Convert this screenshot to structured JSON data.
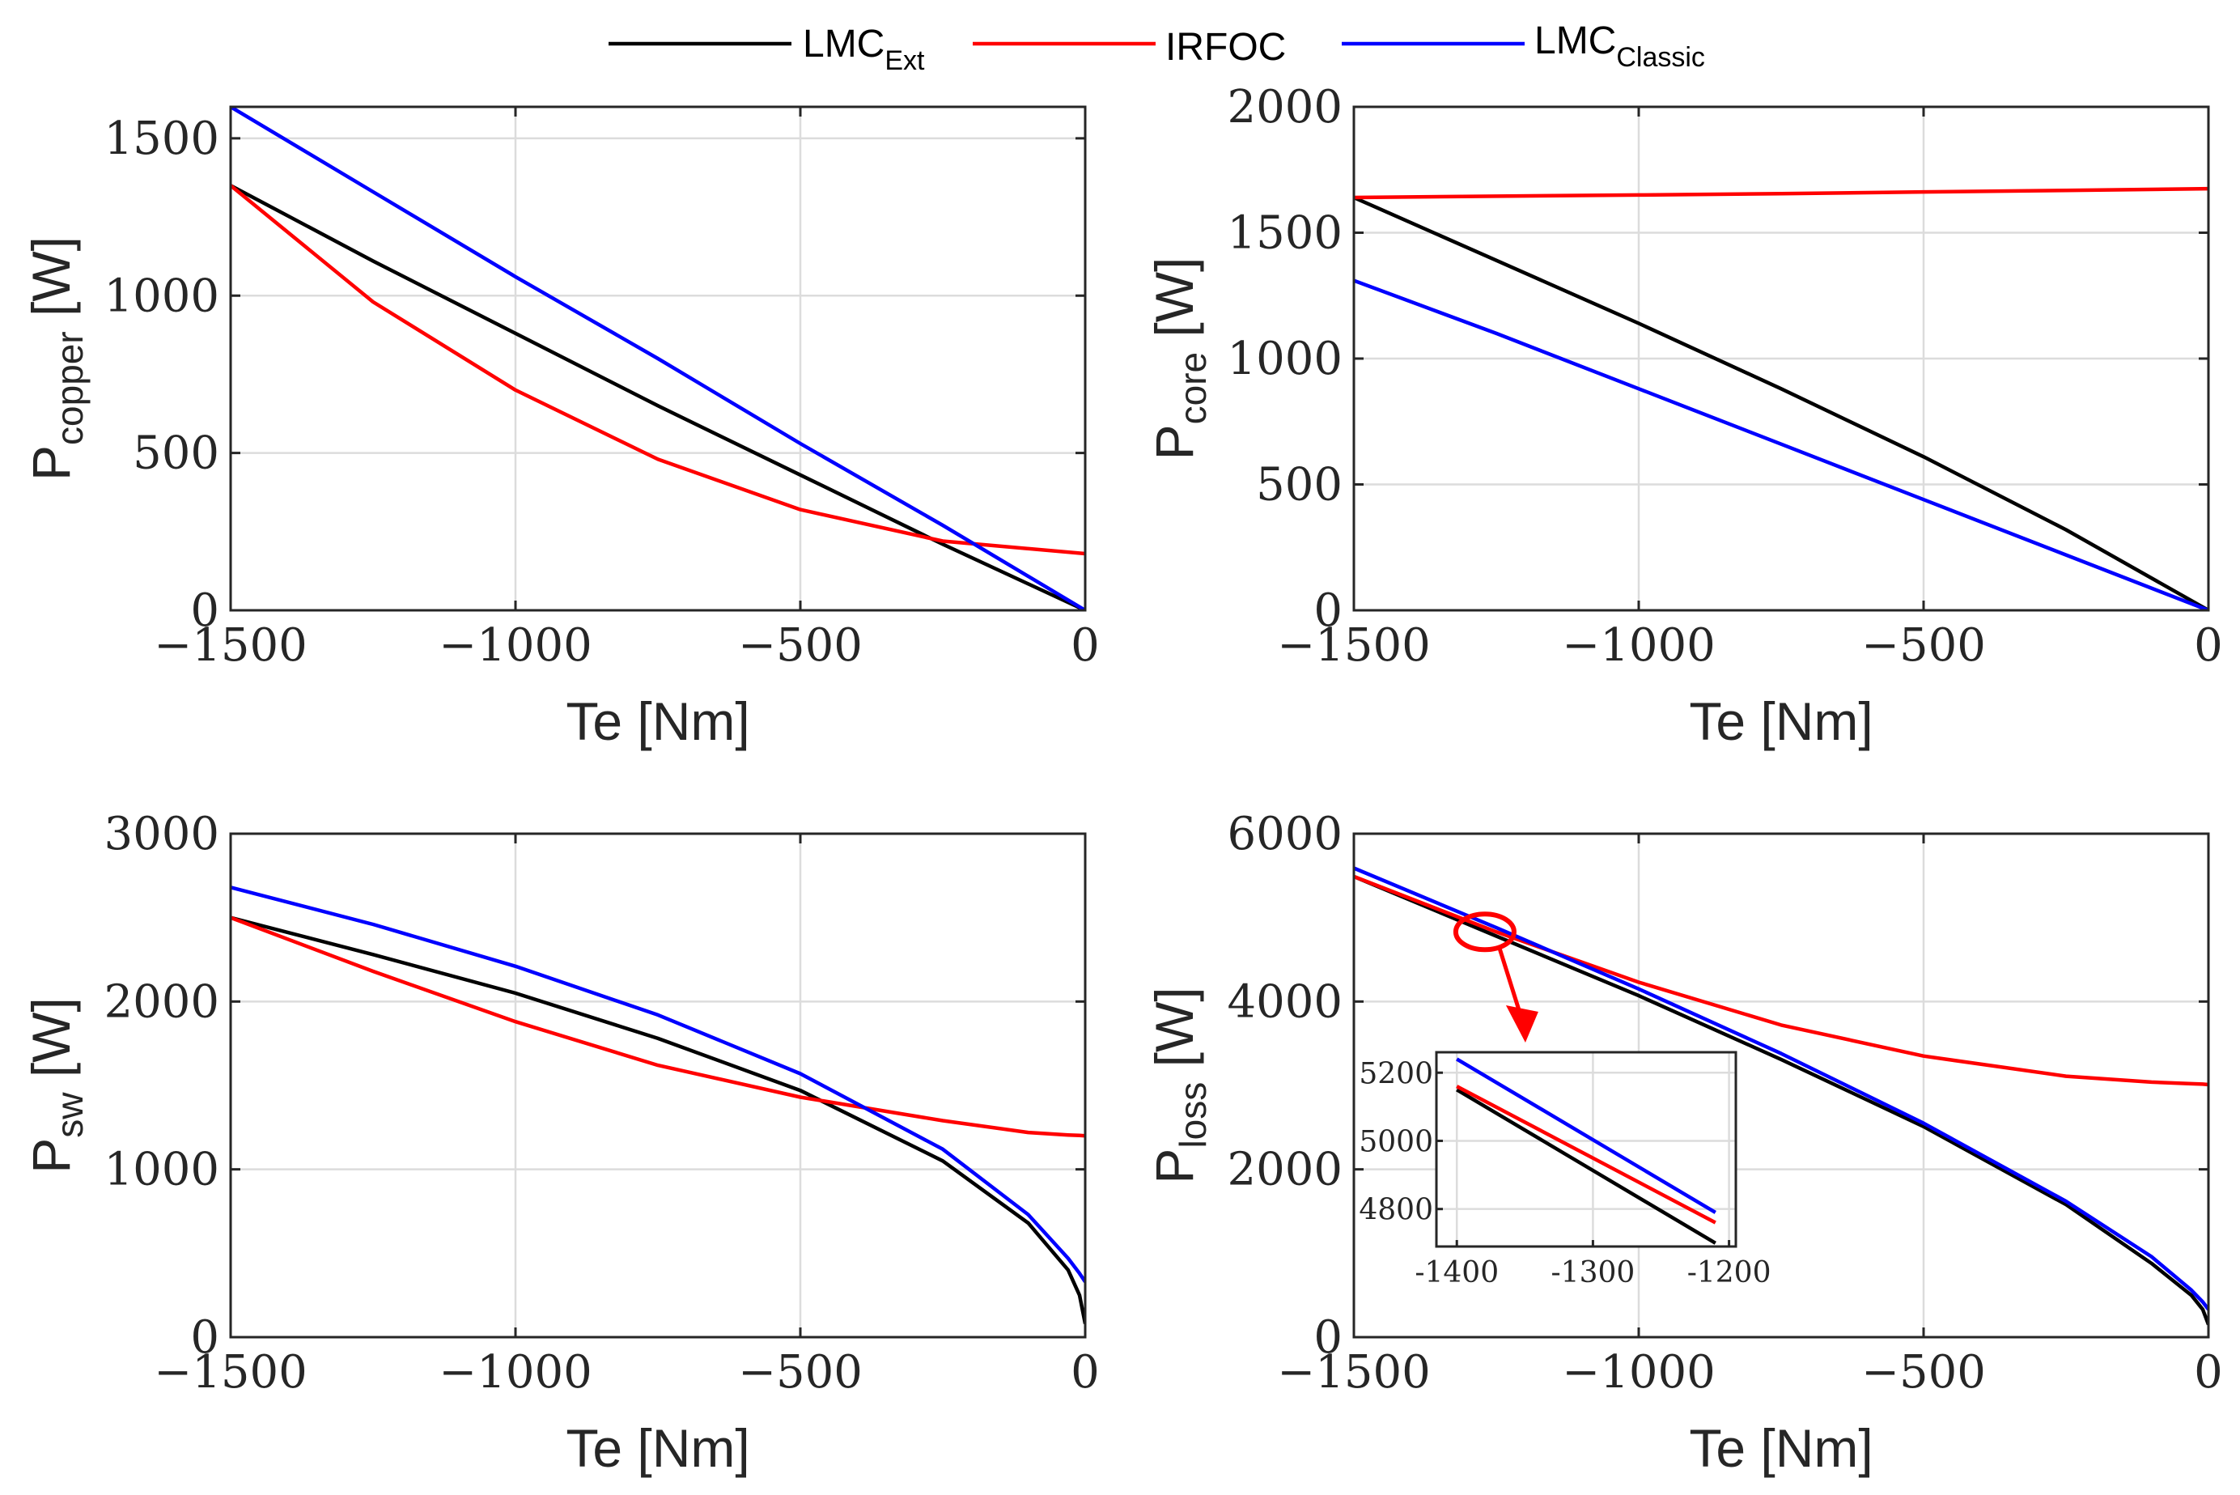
{
  "legend": {
    "entries": [
      {
        "name": "LMC",
        "sub": "Ext",
        "color": "#000000"
      },
      {
        "name": "IRFOC",
        "sub": "",
        "color": "#ff0000"
      },
      {
        "name": "LMC",
        "sub": "Classic",
        "color": "#0000ff"
      }
    ]
  },
  "chart_data": [
    {
      "type": "line",
      "id": "copper",
      "xlabel": "Te [Nm]",
      "ylabel_main": "P",
      "ylabel_sub": "copper",
      "ylabel_unit": " [W]",
      "xlim": [
        -1500,
        0
      ],
      "ylim": [
        0,
        1600
      ],
      "xticks": [
        -1500,
        -1000,
        -500,
        0
      ],
      "xtick_labels": [
        "−1500",
        "−1000",
        "−500",
        "0"
      ],
      "yticks": [
        0,
        500,
        1000,
        1500
      ],
      "ytick_labels": [
        "0",
        "500",
        "1000",
        "1500"
      ],
      "grid": true,
      "x": [
        -1500,
        -1250,
        -1000,
        -750,
        -500,
        -250,
        0
      ],
      "series": [
        {
          "name": "LMC_Ext",
          "color": "#000000",
          "values": [
            1350,
            1110,
            880,
            650,
            430,
            210,
            0
          ]
        },
        {
          "name": "IRFOC",
          "color": "#ff0000",
          "values": [
            1350,
            980,
            700,
            480,
            320,
            220,
            180
          ]
        },
        {
          "name": "LMC_Classic",
          "color": "#0000ff",
          "values": [
            1600,
            1330,
            1060,
            800,
            530,
            270,
            0
          ]
        }
      ]
    },
    {
      "type": "line",
      "id": "core",
      "xlabel": "Te [Nm]",
      "ylabel_main": "P",
      "ylabel_sub": "core",
      "ylabel_unit": " [W]",
      "xlim": [
        -1500,
        0
      ],
      "ylim": [
        0,
        2000
      ],
      "xticks": [
        -1500,
        -1000,
        -500,
        0
      ],
      "xtick_labels": [
        "−1500",
        "−1000",
        "−500",
        "0"
      ],
      "yticks": [
        0,
        500,
        1000,
        1500,
        2000
      ],
      "ytick_labels": [
        "0",
        "500",
        "1000",
        "1500",
        "2000"
      ],
      "grid": true,
      "x": [
        -1500,
        -1250,
        -1000,
        -750,
        -500,
        -250,
        0
      ],
      "series": [
        {
          "name": "LMC_Ext",
          "color": "#000000",
          "values": [
            1640,
            1390,
            1140,
            880,
            610,
            320,
            0
          ]
        },
        {
          "name": "IRFOC",
          "color": "#ff0000",
          "values": [
            1640,
            1645,
            1650,
            1655,
            1662,
            1668,
            1675
          ]
        },
        {
          "name": "LMC_Classic",
          "color": "#0000ff",
          "values": [
            1310,
            1100,
            880,
            660,
            440,
            220,
            0
          ]
        }
      ]
    },
    {
      "type": "line",
      "id": "sw",
      "xlabel": "Te [Nm]",
      "ylabel_main": "P",
      "ylabel_sub": "sw",
      "ylabel_unit": " [W]",
      "xlim": [
        -1500,
        0
      ],
      "ylim": [
        0,
        3000
      ],
      "xticks": [
        -1500,
        -1000,
        -500,
        0
      ],
      "xtick_labels": [
        "−1500",
        "−1000",
        "−500",
        "0"
      ],
      "yticks": [
        0,
        1000,
        2000,
        3000
      ],
      "ytick_labels": [
        "0",
        "1000",
        "2000",
        "3000"
      ],
      "grid": true,
      "x": [
        -1500,
        -1250,
        -1000,
        -750,
        -500,
        -250,
        -100,
        -30,
        -10,
        0
      ],
      "series": [
        {
          "name": "LMC_Ext",
          "color": "#000000",
          "values": [
            2500,
            2280,
            2050,
            1780,
            1470,
            1050,
            680,
            400,
            250,
            80
          ]
        },
        {
          "name": "IRFOC",
          "color": "#ff0000",
          "values": [
            2500,
            2180,
            1880,
            1620,
            1430,
            1290,
            1220,
            1205,
            1202,
            1200
          ]
        },
        {
          "name": "LMC_Classic",
          "color": "#0000ff",
          "values": [
            2680,
            2460,
            2210,
            1920,
            1570,
            1120,
            730,
            470,
            380,
            330
          ]
        }
      ]
    },
    {
      "type": "line",
      "id": "loss",
      "xlabel": "Te [Nm]",
      "ylabel_main": "P",
      "ylabel_sub": "loss",
      "ylabel_unit": " [W]",
      "xlim": [
        -1500,
        0
      ],
      "ylim": [
        0,
        6000
      ],
      "xticks": [
        -1500,
        -1000,
        -500,
        0
      ],
      "xtick_labels": [
        "−1500",
        "−1000",
        "−500",
        "0"
      ],
      "yticks": [
        0,
        2000,
        4000,
        6000
      ],
      "ytick_labels": [
        "0",
        "2000",
        "4000",
        "6000"
      ],
      "grid": true,
      "x": [
        -1500,
        -1250,
        -1000,
        -750,
        -500,
        -250,
        -100,
        -30,
        -10,
        0
      ],
      "series": [
        {
          "name": "LMC_Ext",
          "color": "#000000",
          "values": [
            5490,
            4780,
            4070,
            3310,
            2510,
            1580,
            880,
            500,
            330,
            150
          ]
        },
        {
          "name": "IRFOC",
          "color": "#ff0000",
          "values": [
            5490,
            4830,
            4230,
            3720,
            3350,
            3110,
            3040,
            3020,
            3015,
            3010
          ]
        },
        {
          "name": "LMC_Classic",
          "color": "#0000ff",
          "values": [
            5590,
            4880,
            4150,
            3380,
            2550,
            1620,
            960,
            560,
            420,
            330
          ]
        }
      ],
      "inset": {
        "xlim": [
          -1415,
          -1195
        ],
        "ylim": [
          4690,
          5260
        ],
        "xticks": [
          -1400,
          -1300,
          -1200
        ],
        "xtick_labels": [
          "-1400",
          "-1300",
          "-1200"
        ],
        "yticks": [
          4800,
          5000,
          5200
        ],
        "ytick_labels": [
          "4800",
          "5000",
          "5200"
        ],
        "x": [
          -1400,
          -1210
        ],
        "series": [
          {
            "name": "LMC_Ext",
            "color": "#000000",
            "values": [
              5150,
              4700
            ]
          },
          {
            "name": "IRFOC",
            "color": "#ff0000",
            "values": [
              5160,
              4760
            ]
          },
          {
            "name": "LMC_Classic",
            "color": "#0000ff",
            "values": [
              5240,
              4790
            ]
          }
        ],
        "highlight_x": -1270,
        "highlight_y": 4830
      }
    }
  ]
}
